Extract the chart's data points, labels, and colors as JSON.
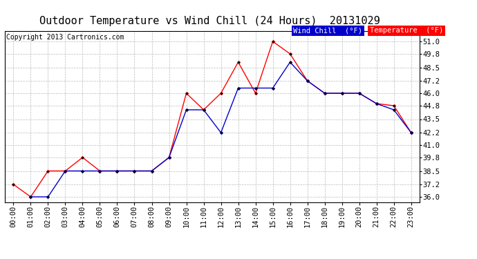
{
  "title": "Outdoor Temperature vs Wind Chill (24 Hours)  20131029",
  "copyright": "Copyright 2013 Cartronics.com",
  "x_labels": [
    "00:00",
    "01:00",
    "02:00",
    "03:00",
    "04:00",
    "05:00",
    "06:00",
    "07:00",
    "08:00",
    "09:00",
    "10:00",
    "11:00",
    "12:00",
    "13:00",
    "14:00",
    "15:00",
    "16:00",
    "17:00",
    "18:00",
    "19:00",
    "20:00",
    "21:00",
    "22:00",
    "23:00"
  ],
  "temperature": [
    37.2,
    36.0,
    38.5,
    38.5,
    39.8,
    38.5,
    38.5,
    38.5,
    38.5,
    39.8,
    46.0,
    44.4,
    46.0,
    49.0,
    46.0,
    51.0,
    49.8,
    47.2,
    46.0,
    46.0,
    46.0,
    45.0,
    44.8,
    42.2
  ],
  "wind_chill": [
    null,
    36.0,
    36.0,
    38.5,
    38.5,
    38.5,
    38.5,
    38.5,
    38.5,
    39.8,
    44.4,
    44.4,
    42.2,
    46.5,
    46.5,
    46.5,
    49.0,
    47.2,
    46.0,
    46.0,
    46.0,
    45.0,
    44.4,
    42.2
  ],
  "ylim": [
    35.5,
    52.0
  ],
  "yticks": [
    36.0,
    37.2,
    38.5,
    39.8,
    41.0,
    42.2,
    43.5,
    44.8,
    46.0,
    47.2,
    48.5,
    49.8,
    51.0
  ],
  "temp_color": "#ff0000",
  "wind_chill_color": "#0000cc",
  "bg_color": "#ffffff",
  "grid_color": "#bbbbbb",
  "legend_wind_bg": "#0000cc",
  "legend_temp_bg": "#ff0000",
  "title_fontsize": 11,
  "axis_fontsize": 7.5,
  "copyright_fontsize": 7
}
